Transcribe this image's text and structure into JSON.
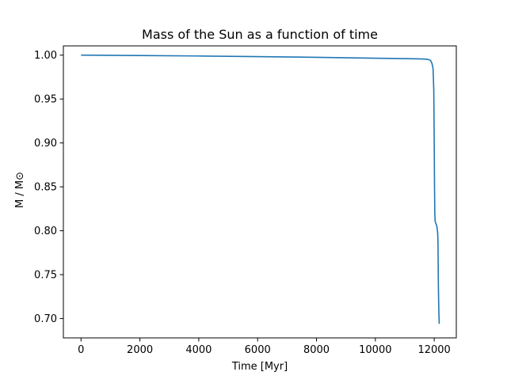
{
  "chart_data": {
    "type": "line",
    "title": "Mass of the Sun as a function of time",
    "xlabel": "Time [Myr]",
    "ylabel": "M / M⊙",
    "xlim": [
      -600,
      12750
    ],
    "ylim": [
      0.678,
      1.0105
    ],
    "xticks": [
      0,
      2000,
      4000,
      6000,
      8000,
      10000,
      12000
    ],
    "xtick_labels": [
      "0",
      "2000",
      "4000",
      "6000",
      "8000",
      "10000",
      "12000"
    ],
    "yticks": [
      0.7,
      0.75,
      0.8,
      0.85,
      0.9,
      0.95,
      1.0
    ],
    "ytick_labels": [
      "0.70",
      "0.75",
      "0.80",
      "0.85",
      "0.90",
      "0.95",
      "1.00"
    ],
    "grid": false,
    "series": [
      {
        "color": "#1f77b4",
        "x": [
          0,
          2000,
          4000,
          6000,
          8000,
          10000,
          11000,
          11500,
          11700,
          11800,
          11870,
          11920,
          11960,
          11985,
          12000,
          12010,
          12020,
          12030,
          12060,
          12090,
          12110,
          12120,
          12125,
          12130,
          12135,
          12140,
          12150,
          12160,
          12170
        ],
        "y": [
          1.0,
          0.9995,
          0.999,
          0.9983,
          0.9975,
          0.9965,
          0.996,
          0.9957,
          0.9955,
          0.995,
          0.994,
          0.991,
          0.985,
          0.96,
          0.9,
          0.85,
          0.82,
          0.811,
          0.808,
          0.805,
          0.8,
          0.795,
          0.79,
          0.78,
          0.76,
          0.74,
          0.72,
          0.705,
          0.694
        ]
      }
    ]
  }
}
